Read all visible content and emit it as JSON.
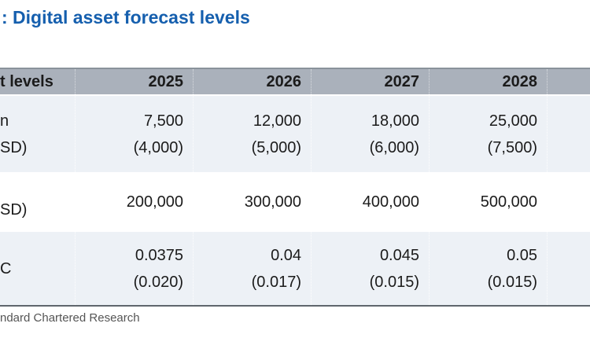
{
  "figure": {
    "title": ": Digital asset forecast levels"
  },
  "table": {
    "header": {
      "label": "t levels",
      "years": [
        "2025",
        "2026",
        "2027",
        "2028"
      ]
    },
    "rows": [
      {
        "label_lines": [
          "n",
          "SD)"
        ],
        "cells": [
          {
            "value": "7,500",
            "previous": "(4,000)"
          },
          {
            "value": "12,000",
            "previous": "(5,000)"
          },
          {
            "value": "18,000",
            "previous": "(6,000)"
          },
          {
            "value": "25,000",
            "previous": "(7,500)"
          }
        ]
      },
      {
        "label_lines": [
          "SD)"
        ],
        "cells": [
          {
            "value": "200,000"
          },
          {
            "value": "300,000"
          },
          {
            "value": "400,000"
          },
          {
            "value": "500,000"
          }
        ]
      },
      {
        "label_lines": [
          "C"
        ],
        "cells": [
          {
            "value": "0.0375",
            "previous": "(0.020)"
          },
          {
            "value": "0.04",
            "previous": "(0.017)"
          },
          {
            "value": "0.045",
            "previous": "(0.015)"
          },
          {
            "value": "0.05",
            "previous": "(0.015)"
          }
        ]
      }
    ]
  },
  "source": "ndard Chartered Research",
  "colors": {
    "title_blue": "#155fae",
    "header_bg": "#aab1bb",
    "alt_row_bg": "#edf1f6",
    "table_top_border": "#8a929b",
    "table_bottom_border": "#5f666d",
    "source_text": "#555555",
    "body_text": "#1b1b1b"
  }
}
